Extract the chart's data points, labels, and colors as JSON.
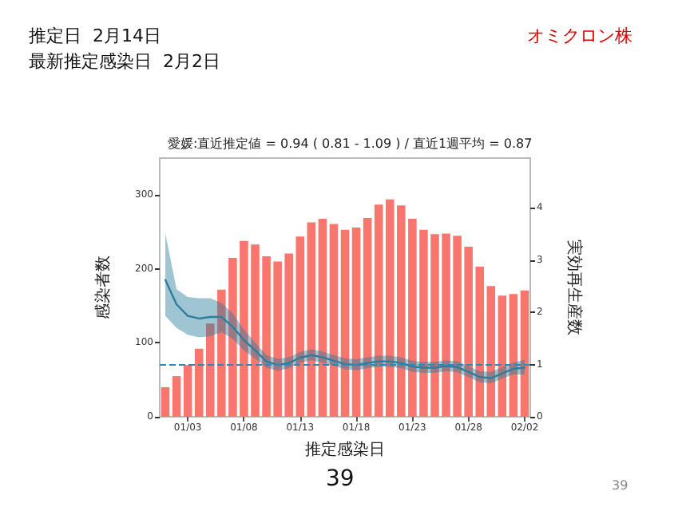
{
  "chart_data": {
    "type": "bar",
    "title": "愛媛:直近推定値 = 0.94 ( 0.81 - 1.09 ) / 直近1週平均 = 0.87",
    "xlabel": "推定感染日",
    "ylabel": "感染者数",
    "y2label": "実効再生産数",
    "annotations": [
      "推定日  2月14日",
      "最新推定感染日  2月2日",
      "オミクロン株",
      "39",
      "39"
    ],
    "categories": [
      null,
      null,
      "01/03",
      null,
      null,
      null,
      null,
      "01/08",
      null,
      null,
      null,
      null,
      "01/13",
      null,
      null,
      null,
      null,
      "01/18",
      null,
      null,
      null,
      null,
      "01/23",
      null,
      null,
      null,
      null,
      "01/28",
      null,
      null,
      null,
      null,
      "02/02"
    ],
    "series": [
      {
        "color": "#f8766d",
        "values": [
          40,
          55,
          70,
          92,
          126,
          172,
          215,
          238,
          233,
          217,
          210,
          221,
          244,
          263,
          268,
          261,
          253,
          256,
          269,
          287,
          294,
          286,
          268,
          253,
          247,
          248,
          245,
          230,
          203,
          177,
          164,
          166,
          171
        ]
      },
      {
        "type": "line",
        "axis": "y2",
        "color": "#2c7f9c",
        "marker": "none",
        "line_style": "solid",
        "values": [
          2.62,
          2.15,
          1.93,
          1.88,
          1.91,
          1.91,
          1.72,
          1.47,
          1.27,
          1.06,
          0.99,
          1.03,
          1.13,
          1.18,
          1.14,
          1.07,
          1.01,
          0.99,
          1.03,
          1.06,
          1.06,
          1.03,
          0.96,
          0.94,
          0.94,
          0.97,
          0.95,
          0.86,
          0.76,
          0.74,
          0.83,
          0.92,
          0.94
        ],
        "lower": [
          1.93,
          1.7,
          1.57,
          1.52,
          1.54,
          1.62,
          1.49,
          1.27,
          1.11,
          0.94,
          0.88,
          0.93,
          1.03,
          1.08,
          1.04,
          0.97,
          0.91,
          0.89,
          0.93,
          0.96,
          0.96,
          0.93,
          0.86,
          0.84,
          0.84,
          0.87,
          0.85,
          0.76,
          0.66,
          0.64,
          0.73,
          0.81,
          0.81
        ],
        "upper": [
          3.51,
          2.44,
          2.29,
          2.27,
          2.27,
          2.18,
          1.98,
          1.67,
          1.42,
          1.18,
          1.11,
          1.14,
          1.24,
          1.29,
          1.25,
          1.18,
          1.12,
          1.1,
          1.14,
          1.17,
          1.17,
          1.14,
          1.07,
          1.05,
          1.05,
          1.08,
          1.06,
          0.97,
          0.87,
          0.86,
          0.95,
          1.04,
          1.09
        ]
      }
    ],
    "ylim": [
      0,
      350
    ],
    "yticks": [
      0,
      100,
      200,
      300
    ],
    "y2lim": [
      0,
      4.95
    ],
    "y2ticks": [
      0,
      1,
      2,
      3,
      4
    ],
    "ref_lines": [
      {
        "axis": "y2",
        "value": 1,
        "color": "#2a8bb8",
        "line_style": "dashed"
      }
    ],
    "grid": false
  }
}
